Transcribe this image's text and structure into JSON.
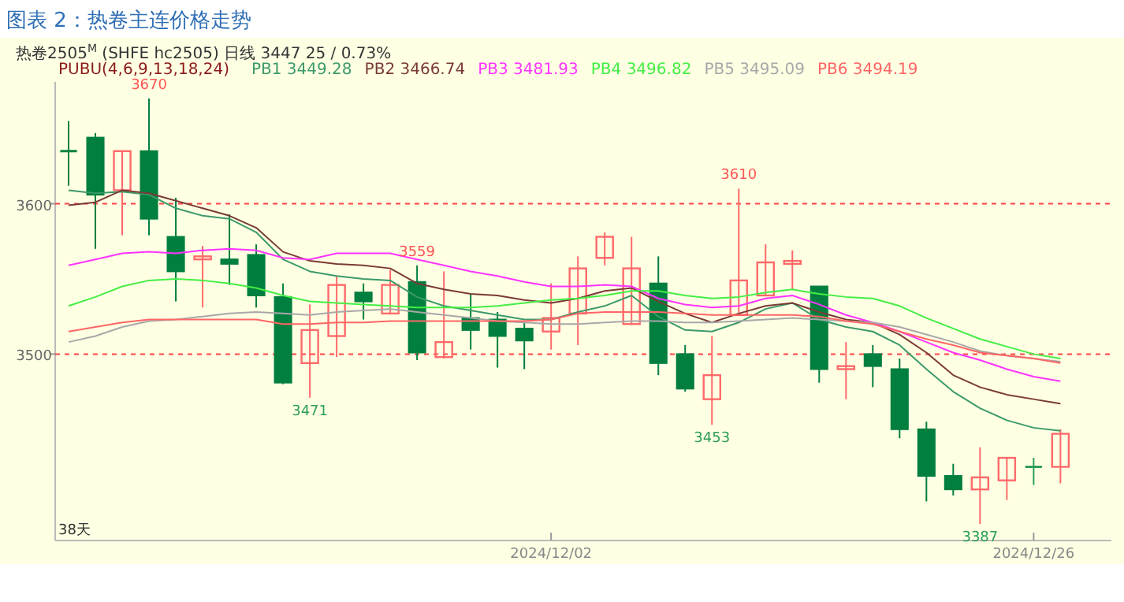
{
  "chart_data": {
    "type": "candlestick",
    "title": "图表 2：热卷主连价格走势",
    "subtitle": "热卷2505$^{M}$ (SHFE hc2505)  日线   3447   25 / 0.73%",
    "legend_title": "PUBU(4,6,9,13,18,24)",
    "grid": false,
    "categories": [
      null,
      null,
      null,
      null,
      null,
      null,
      null,
      null,
      null,
      null,
      null,
      null,
      null,
      null,
      null,
      null,
      null,
      null,
      "2024/12/02",
      null,
      null,
      null,
      null,
      null,
      null,
      null,
      null,
      null,
      null,
      null,
      null,
      null,
      null,
      null,
      null,
      null,
      "2024/12/26",
      null
    ],
    "ylim": [
      3376,
      3681
    ],
    "yticks": [
      3500,
      3600
    ],
    "ohlc": [
      [
        3635,
        3655,
        3612,
        3635
      ],
      [
        3644,
        3647,
        3570,
        3606
      ],
      [
        3609,
        3635,
        3579,
        3635
      ],
      [
        3635,
        3670,
        3579,
        3590
      ],
      [
        3578,
        3604,
        3535,
        3555
      ],
      [
        3563,
        3572,
        3531,
        3565
      ],
      [
        3563,
        3593,
        3546,
        3560
      ],
      [
        3566,
        3573,
        3531,
        3539
      ],
      [
        3538,
        3547,
        3480,
        3481
      ],
      [
        3494,
        3533,
        3471,
        3516
      ],
      [
        3512,
        3552,
        3498,
        3546
      ],
      [
        3541,
        3547,
        3523,
        3535
      ],
      [
        3527,
        3556,
        3527,
        3546
      ],
      [
        3548,
        3559,
        3496,
        3501
      ],
      [
        3498,
        3555,
        3497,
        3508
      ],
      [
        3524,
        3540,
        3503,
        3516
      ],
      [
        3523,
        3528,
        3491,
        3512
      ],
      [
        3517,
        3521,
        3490,
        3509
      ],
      [
        3515,
        3547,
        3503,
        3524
      ],
      [
        3527,
        3565,
        3506,
        3557
      ],
      [
        3564,
        3581,
        3559,
        3578
      ],
      [
        3520,
        3578,
        3520,
        3557
      ],
      [
        3547,
        3565,
        3486,
        3494
      ],
      [
        3500,
        3506,
        3475,
        3477
      ],
      [
        3470,
        3512,
        3453,
        3486
      ],
      [
        3526,
        3610,
        3526,
        3549
      ],
      [
        3539,
        3573,
        3539,
        3561
      ],
      [
        3560,
        3569,
        3543,
        3562
      ],
      [
        3545,
        3545,
        3481,
        3490
      ],
      [
        3490,
        3508,
        3470,
        3492
      ],
      [
        3500,
        3506,
        3478,
        3492
      ],
      [
        3490,
        3497,
        3444,
        3450
      ],
      [
        3450,
        3455,
        3402,
        3419
      ],
      [
        3419,
        3427,
        3406,
        3410
      ],
      [
        3410,
        3438,
        3387,
        3418
      ],
      [
        3416,
        3431,
        3403,
        3431
      ],
      [
        3425,
        3431,
        3413,
        3425
      ],
      [
        3425,
        3450,
        3414,
        3447
      ]
    ],
    "colors": [
      "#007f3f",
      "#007f3f",
      "#ff6a6a",
      "#007f3f",
      "#007f3f",
      "#ff6a6a",
      "#007f3f",
      "#007f3f",
      "#007f3f",
      "#ff6a6a",
      "#ff6a6a",
      "#007f3f",
      "#ff6a6a",
      "#007f3f",
      "#ff6a6a",
      "#007f3f",
      "#007f3f",
      "#007f3f",
      "#ff6a6a",
      "#ff6a6a",
      "#ff6a6a",
      "#ff6a6a",
      "#007f3f",
      "#007f3f",
      "#ff6a6a",
      "#ff6a6a",
      "#ff6a6a",
      "#ff6a6a",
      "#007f3f",
      "#ff6a6a",
      "#007f3f",
      "#007f3f",
      "#007f3f",
      "#007f3f",
      "#ff6a6a",
      "#ff6a6a",
      "#2e9e5b",
      "#ff6a6a"
    ],
    "series": [
      {
        "name": "PB1 3449.28",
        "type": "line",
        "color": "#3c9a6a",
        "values": [
          3609,
          3607,
          3608,
          3606,
          3597,
          3592,
          3590,
          3581,
          3563,
          3555,
          3552,
          3550,
          3549,
          3538,
          3532,
          3529,
          3526,
          3523,
          3523,
          3528,
          3532,
          3539,
          3525,
          3516,
          3515,
          3521,
          3530,
          3534,
          3523,
          3518,
          3515,
          3506,
          3490,
          3475,
          3464,
          3456,
          3451,
          3449
        ]
      },
      {
        "name": "PB2 3466.74",
        "type": "line",
        "color": "#7a3b35",
        "values": [
          3599,
          3601,
          3609,
          3607,
          3602,
          3597,
          3592,
          3584,
          3568,
          3562,
          3560,
          3559,
          3557,
          3547,
          3543,
          3540,
          3539,
          3536,
          3534,
          3537,
          3542,
          3544,
          3535,
          3527,
          3521,
          3527,
          3532,
          3534,
          3528,
          3523,
          3521,
          3513,
          3501,
          3486,
          3478,
          3473,
          3470,
          3467
        ]
      },
      {
        "name": "PB3 3481.93",
        "type": "line",
        "color": "#ff33ff",
        "values": [
          3559,
          3563,
          3567,
          3568,
          3567,
          3569,
          3570,
          3569,
          3564,
          3563,
          3567,
          3567,
          3567,
          3563,
          3559,
          3555,
          3552,
          3548,
          3545,
          3545,
          3546,
          3545,
          3537,
          3533,
          3531,
          3532,
          3537,
          3539,
          3533,
          3526,
          3521,
          3515,
          3508,
          3501,
          3496,
          3490,
          3485,
          3482
        ]
      },
      {
        "name": "PB4 3496.82",
        "type": "line",
        "color": "#44ee44",
        "values": [
          3532,
          3538,
          3545,
          3549,
          3550,
          3549,
          3547,
          3544,
          3539,
          3535,
          3534,
          3533,
          3532,
          3531,
          3531,
          3531,
          3532,
          3534,
          3536,
          3537,
          3539,
          3542,
          3542,
          3539,
          3537,
          3538,
          3541,
          3543,
          3540,
          3538,
          3537,
          3532,
          3524,
          3517,
          3510,
          3505,
          3500,
          3497
        ]
      },
      {
        "name": "PB5 3495.09",
        "type": "line",
        "color": "#a8a8a8",
        "values": [
          3508,
          3512,
          3518,
          3522,
          3523,
          3525,
          3527,
          3528,
          3527,
          3526,
          3528,
          3529,
          3530,
          3528,
          3526,
          3524,
          3522,
          3521,
          3520,
          3520,
          3521,
          3522,
          3522,
          3521,
          3521,
          3522,
          3523,
          3524,
          3523,
          3522,
          3521,
          3518,
          3513,
          3508,
          3502,
          3499,
          3497,
          3495
        ]
      },
      {
        "name": "PB6 3494.19",
        "type": "line",
        "color": "#ff6666",
        "values": [
          3515,
          3518,
          3521,
          3523,
          3523,
          3523,
          3523,
          3523,
          3520,
          3520,
          3521,
          3521,
          3522,
          3522,
          3522,
          3522,
          3522,
          3522,
          3523,
          3527,
          3528,
          3528,
          3528,
          3527,
          3526,
          3526,
          3526,
          3526,
          3525,
          3522,
          3520,
          3515,
          3510,
          3506,
          3501,
          3499,
          3497,
          3494
        ]
      }
    ],
    "ref_lines": [
      {
        "axis": "y",
        "value": 3600,
        "color": "#ff4444",
        "line_style": "dashed"
      },
      {
        "axis": "y",
        "value": 3500,
        "color": "#ff4444",
        "line_style": "dashed"
      }
    ],
    "annotations": [
      {
        "text": "3670",
        "y": 3670
      },
      {
        "text": "3471",
        "y": 3471
      },
      {
        "text": "3559",
        "y": 3559
      },
      {
        "text": "3453",
        "y": 3453
      },
      {
        "text": "3610",
        "y": 3610
      },
      {
        "text": "3387",
        "y": 3387
      },
      "38天"
    ]
  }
}
